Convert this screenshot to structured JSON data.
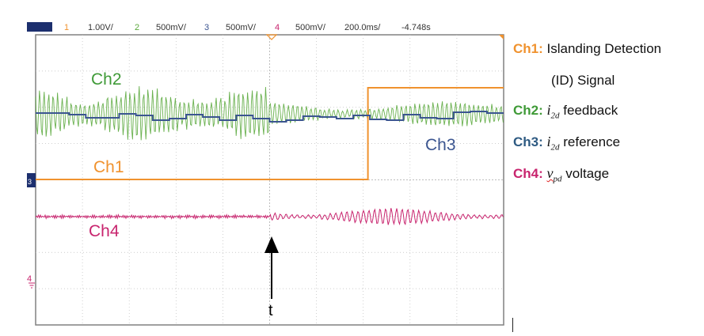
{
  "chart_data": {
    "type": "line",
    "header": {
      "ch1_num": "1",
      "ch1_scale": "1.00V/",
      "ch2_num": "2",
      "ch2_scale": "500mV/",
      "ch3_num": "3",
      "ch3_scale": "500mV/",
      "ch4_num": "4",
      "ch4_scale": "500mV/",
      "timebase": "200.0ms/",
      "offset": "-4.748s"
    },
    "series": [
      {
        "name": "Ch1",
        "color": "#f0922e"
      },
      {
        "name": "Ch2",
        "color": "#5aa83c"
      },
      {
        "name": "Ch3",
        "color": "#3b5590"
      },
      {
        "name": "Ch4",
        "color": "#c8246e"
      }
    ],
    "ch1_step_division": 7.1,
    "event_division": 5,
    "event_label": "t",
    "grid": true,
    "divisions_x": 10,
    "divisions_y": 8
  },
  "legend": [
    {
      "ch": "Ch1:",
      "text": "Islanding Detection",
      "color": "#f0922e"
    },
    {
      "text2": "(ID) Signal"
    },
    {
      "ch": "Ch2:",
      "sym": "i",
      "sub": "2d",
      "text": "feedback",
      "color": "#3f9a37"
    },
    {
      "ch": "Ch3:",
      "sym": "i",
      "sub": "2d",
      "text": "reference",
      "color": "#2e5a82"
    },
    {
      "ch": "Ch4:",
      "sym": "v",
      "sub": "pd",
      "text": "voltage",
      "color": "#c8246e"
    }
  ],
  "colors": {
    "grid": "#bdbdbd",
    "frame": "#808080",
    "badge": "#1c2f6e"
  }
}
